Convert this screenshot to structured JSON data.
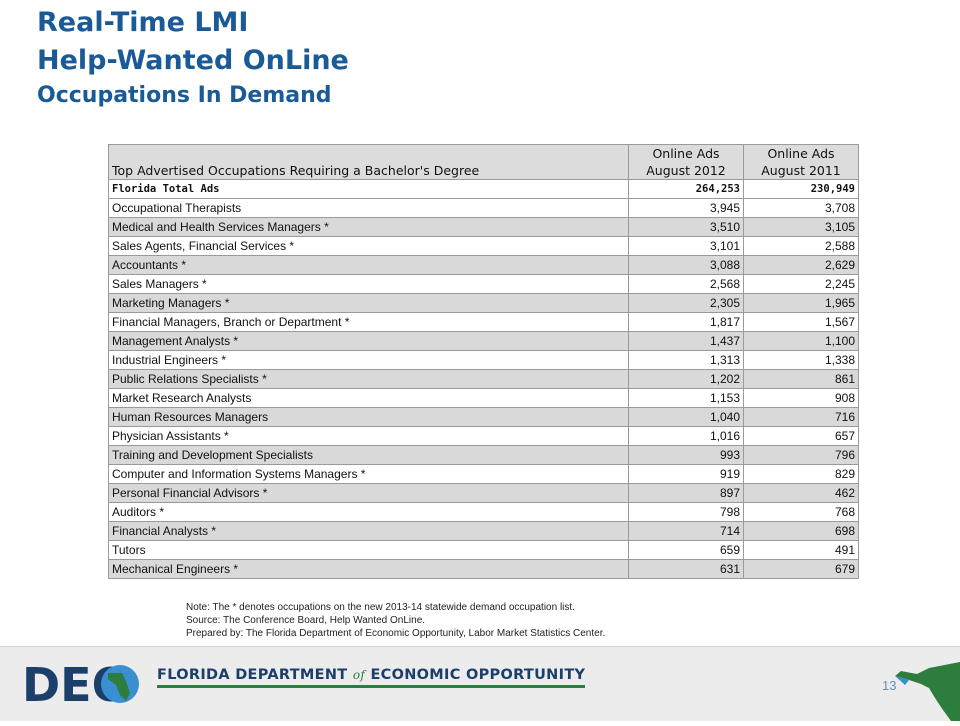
{
  "title": {
    "line1": "Real-Time LMI",
    "line2": "Help-Wanted OnLine",
    "line3": "Occupations In Demand"
  },
  "table": {
    "header_row1": [
      "",
      "Online Ads",
      "Online Ads"
    ],
    "header_row2": [
      "Top Advertised Occupations Requiring a Bachelor's Degree",
      "August 2012",
      "August 2011"
    ],
    "total_row": [
      "Florida Total Ads",
      "264,253",
      "230,949"
    ],
    "rows": [
      [
        "Occupational Therapists",
        "3,945",
        "3,708"
      ],
      [
        "Medical and Health Services Managers *",
        "3,510",
        "3,105"
      ],
      [
        "Sales Agents, Financial Services *",
        "3,101",
        "2,588"
      ],
      [
        "Accountants *",
        "3,088",
        "2,629"
      ],
      [
        "Sales Managers *",
        "2,568",
        "2,245"
      ],
      [
        "Marketing Managers *",
        "2,305",
        "1,965"
      ],
      [
        "Financial Managers, Branch or Department *",
        "1,817",
        "1,567"
      ],
      [
        "Management Analysts *",
        "1,437",
        "1,100"
      ],
      [
        "Industrial Engineers *",
        "1,313",
        "1,338"
      ],
      [
        "Public Relations Specialists *",
        "1,202",
        "861"
      ],
      [
        "Market Research Analysts",
        "1,153",
        "908"
      ],
      [
        "Human Resources Managers",
        "1,040",
        "716"
      ],
      [
        "Physician Assistants *",
        "1,016",
        "657"
      ],
      [
        "Training and Development Specialists",
        "993",
        "796"
      ],
      [
        "Computer and Information Systems Managers *",
        "919",
        "829"
      ],
      [
        "Personal Financial Advisors *",
        "897",
        "462"
      ],
      [
        "Auditors *",
        "798",
        "768"
      ],
      [
        "Financial Analysts *",
        "714",
        "698"
      ],
      [
        "Tutors",
        "659",
        "491"
      ],
      [
        "Mechanical Engineers *",
        "631",
        "679"
      ]
    ]
  },
  "notes": [
    "Note: The * denotes occupations on the new 2013-14 statewide demand occupation list.",
    "Source:  The Conference Board, Help Wanted OnLine.",
    "Prepared by:    The Florida Department of Economic Opportunity, Labor Market Statistics Center."
  ],
  "footer": {
    "dept_part1": "FLORIDA DEPARTMENT",
    "dept_of": "of",
    "dept_part2": "ECONOMIC OPPORTUNITY",
    "logo_text": "DEO",
    "page_number": "13"
  },
  "colors": {
    "title": "#1a5a96",
    "logo_navy": "#1b3e6b",
    "logo_green": "#2d7d3f",
    "logo_blue": "#3a8fd0",
    "row_stripe": "#d9d9d9"
  },
  "icons": [
    "deo-logo-icon",
    "florida-map-icon"
  ]
}
